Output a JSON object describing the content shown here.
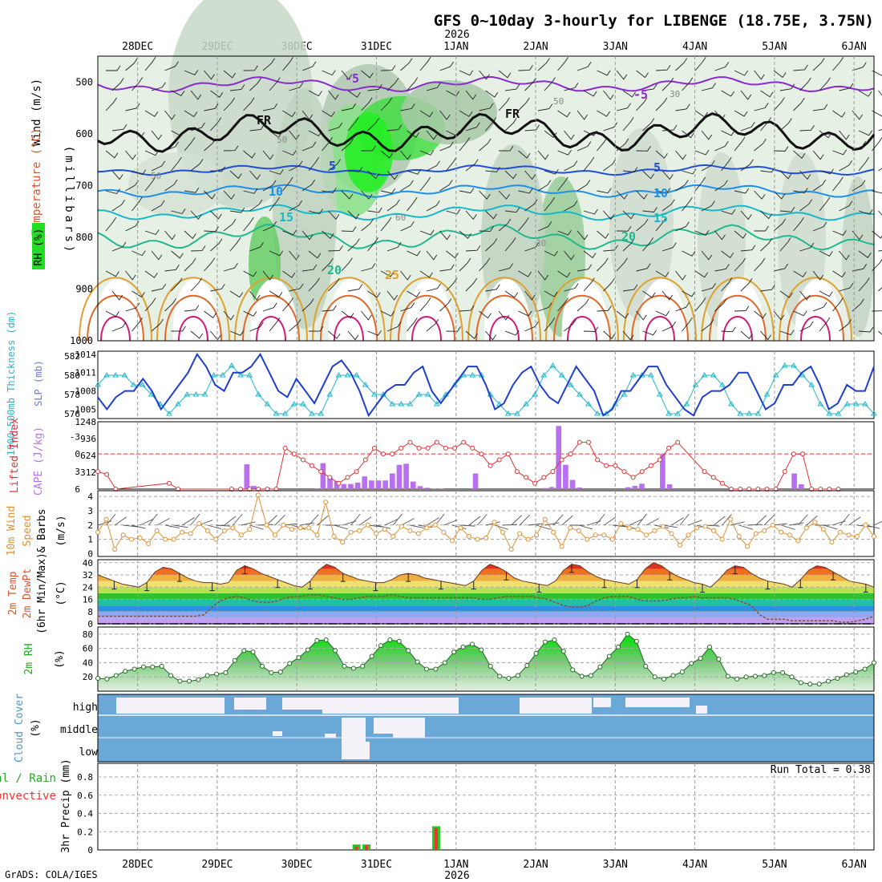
{
  "title": "GFS 0~10day 3-hourly for LIBENGE (18.75E, 3.75N)",
  "year_label": "2026",
  "x_axis": {
    "dates": [
      "28DEC",
      "29DEC",
      "30DEC",
      "31DEC",
      "1JAN",
      "2JAN",
      "3JAN",
      "4JAN",
      "5JAN",
      "6JAN"
    ],
    "date_values": [
      "2025-12-28",
      "2025-12-29",
      "2025-12-30",
      "2025-12-31",
      "2026-01-01",
      "2026-01-02",
      "2026-01-03",
      "2026-01-04",
      "2026-01-05",
      "2026-01-06"
    ],
    "start": "2025-12-27 12:00",
    "end": "2026-01-06 06:00"
  },
  "footer": "GrADS: COLA/IGES",
  "run_total": "Run Total = 0.38",
  "colors": {
    "frame": "#000000",
    "grid": "#aaaaaa",
    "slp": "#1f3fd0",
    "thickness": "#22b8c8",
    "lifted": "#dd3333",
    "cape": "#b870f0",
    "wind": "#e09030",
    "rh": "#22cc22",
    "cloud": "#6aa8d8",
    "precip_total": "#22cc22",
    "precip_conv": "#ee3333"
  },
  "panels": {
    "upper": {
      "label_wind": "Wind (m/s)",
      "label_temp": "Temperature (°C)",
      "label_rh": "RH (%)",
      "label_mb": "(millibars)",
      "ticks": [
        "500",
        "600",
        "700",
        "800",
        "900",
        "1000"
      ],
      "isotherm_labels": [
        "-5",
        "-5",
        "FR",
        "FR",
        "5",
        "5",
        "10",
        "10",
        "15",
        "15",
        "20",
        "20",
        "25",
        "50",
        "50",
        "60",
        "50",
        "30",
        "30"
      ]
    },
    "slp": {
      "label_left": "1000-500mb Thickness (dm)",
      "label_right": "SLP (mb)",
      "ticks_left": [
        "582",
        "580",
        "578",
        "576"
      ],
      "ticks_right": [
        "1014",
        "1011",
        "1008",
        "1005"
      ]
    },
    "cape": {
      "label_left": "Lifted Index",
      "label_right": "CAPE (J/kg)",
      "ticks_left": [
        "-3",
        "0",
        "3",
        "6"
      ],
      "ticks_right": [
        "1248",
        "936",
        "624",
        "312"
      ]
    },
    "wind10m": {
      "label1": "10m Wind",
      "label2": "Speed",
      "label3": "& Barbs",
      "unit": "(m/s)",
      "ticks": [
        "4",
        "3",
        "2",
        "1",
        "0"
      ]
    },
    "temp2m": {
      "label1": "2m Temp",
      "label2": "2m DewPt",
      "label3": "(6hr Min/Max)",
      "unit": "(°C)",
      "ticks": [
        "40",
        "32",
        "24",
        "16",
        "8",
        "0"
      ]
    },
    "rh2m": {
      "label": "2m RH",
      "unit": "(%)",
      "ticks": [
        "80",
        "60",
        "40",
        "20"
      ]
    },
    "cloud": {
      "label": "Cloud Cover",
      "unit": "(%)",
      "levels": [
        "high",
        "middle",
        "low"
      ]
    },
    "precip": {
      "label_total": "Total / Rain",
      "label_conv": "Convective",
      "label_axis": "3hr Precip (mm)",
      "ticks": [
        "0.8",
        "0.6",
        "0.4",
        "0.2",
        "0"
      ]
    }
  },
  "chart_data": [
    {
      "name": "slp",
      "type": "line",
      "unit": "mb",
      "ylim": [
        1003.5,
        1014.5
      ],
      "values": [
        1007,
        1005,
        1007,
        1008,
        1008,
        1010,
        1008,
        1005,
        1007,
        1009,
        1011,
        1014,
        1012,
        1009,
        1008,
        1011,
        1011,
        1012,
        1014,
        1011,
        1008,
        1007,
        1010,
        1008,
        1006,
        1009,
        1012,
        1013,
        1011,
        1008,
        1004,
        1006,
        1008,
        1009,
        1009,
        1011,
        1012,
        1008,
        1006,
        1008,
        1010,
        1012,
        1012,
        1009,
        1005,
        1006,
        1009,
        1011,
        1012,
        1009,
        1007,
        1006,
        1009,
        1012,
        1010,
        1008,
        1004,
        1005,
        1008,
        1008,
        1010,
        1012,
        1012,
        1009,
        1007,
        1005,
        1004,
        1007,
        1008,
        1008,
        1009,
        1011,
        1011,
        1008,
        1005,
        1006,
        1009,
        1009,
        1011,
        1012,
        1009,
        1005,
        1006,
        1009,
        1008,
        1008,
        1012
      ]
    },
    {
      "name": "thickness",
      "type": "line",
      "unit": "dm",
      "ylim": [
        575.5,
        582.5
      ],
      "values": [
        579,
        580,
        580,
        580,
        579,
        579,
        578,
        577,
        576,
        577,
        578,
        578,
        578,
        580,
        580,
        581,
        580,
        580,
        578,
        577,
        576,
        576,
        577,
        577,
        576,
        576,
        578,
        580,
        580,
        580,
        579,
        578,
        578,
        577,
        577,
        577,
        578,
        578,
        577,
        578,
        579,
        580,
        580,
        580,
        578,
        577,
        576,
        576,
        577,
        578,
        580,
        581,
        580,
        579,
        578,
        577,
        576,
        576,
        577,
        578,
        580,
        580,
        580,
        578,
        576,
        576,
        577,
        579,
        580,
        580,
        579,
        577,
        576,
        576,
        576,
        578,
        580,
        581,
        581,
        580,
        579,
        577,
        576,
        576,
        577,
        577,
        577,
        576
      ]
    },
    {
      "name": "lifted_index",
      "type": "line",
      "unit": "",
      "ylim": [
        6,
        -5.5
      ],
      "values": [
        3,
        3.5,
        6,
        null,
        null,
        null,
        null,
        null,
        5,
        6,
        null,
        null,
        null,
        null,
        null,
        6,
        6,
        6,
        6,
        6,
        6,
        -1,
        0,
        1,
        2,
        3,
        4,
        5,
        4,
        3,
        1,
        -1,
        0,
        0,
        -1,
        -2,
        -1,
        -1,
        -2,
        -1,
        -1,
        -2,
        -1,
        0,
        2,
        1,
        0,
        3,
        4,
        5,
        4,
        3,
        1,
        0,
        -2,
        -2,
        1,
        2,
        2,
        3,
        4,
        3,
        2,
        1,
        -1,
        -2,
        null,
        null,
        3,
        4,
        5,
        6,
        6,
        6,
        6,
        6,
        6,
        3,
        0,
        0,
        6,
        6,
        6,
        6,
        null,
        null,
        null,
        null
      ]
    },
    {
      "name": "cape",
      "type": "bar",
      "unit": "J/kg",
      "ylim": [
        0,
        1248
      ],
      "values": [
        0,
        0,
        0,
        0,
        0,
        0,
        0,
        0,
        0,
        0,
        0,
        0,
        0,
        0,
        0,
        0,
        0,
        0,
        0,
        0,
        0,
        460,
        60,
        0,
        25,
        0,
        0,
        0,
        0,
        0,
        0,
        15,
        480,
        210,
        150,
        95,
        95,
        120,
        235,
        160,
        160,
        160,
        290,
        450,
        470,
        140,
        55,
        25,
        5,
        5,
        0,
        0,
        0,
        0,
        290,
        0,
        0,
        0,
        0,
        0,
        0,
        0,
        0,
        0,
        20,
        40,
        1170,
        450,
        170,
        30,
        0,
        0,
        0,
        0,
        0,
        0,
        35,
        60,
        100,
        0,
        0,
        650,
        90,
        0,
        0,
        0,
        0,
        0,
        0,
        0,
        0,
        0,
        0,
        0,
        0,
        0,
        0,
        0,
        0,
        0,
        290,
        90,
        0,
        0,
        0,
        0,
        0,
        0,
        0,
        0,
        0,
        0
      ]
    },
    {
      "name": "wind_speed_10m",
      "type": "line",
      "unit": "m/s",
      "ylim": [
        -0.2,
        4.4
      ],
      "values": [
        1.5,
        2.4,
        0.3,
        1.3,
        1.0,
        1.1,
        0.7,
        1.6,
        1.0,
        1.0,
        1.5,
        1.4,
        2.1,
        1.6,
        1.0,
        1.6,
        1.8,
        1.3,
        1.7,
        4.1,
        2.0,
        1.3,
        2.0,
        1.7,
        1.8,
        1.8,
        1.3,
        3.6,
        1.2,
        0.8,
        1.5,
        1.6,
        2.0,
        1.4,
        1.7,
        1.2,
        1.9,
        1.6,
        1.4,
        1.8,
        2.0,
        1.5,
        0.9,
        1.8,
        1.2,
        1.0,
        1.1,
        2.2,
        1.5,
        0.3,
        1.4,
        1.0,
        1.3,
        2.4,
        1.5,
        0.5,
        1.8,
        1.6,
        1.0,
        1.3,
        1.3,
        1.0,
        2.1,
        1.8,
        1.7,
        1.3,
        1.6,
        1.9,
        1.4,
        0.6,
        1.3,
        1.8,
        1.9,
        1.6,
        1.0,
        2.4,
        1.2,
        0.5,
        1.4,
        1.6,
        2.0,
        1.5,
        1.3,
        0.9,
        1.8,
        2.2,
        1.7,
        0.8,
        1.5,
        1.3,
        1.2,
        2.0,
        1.2
      ]
    },
    {
      "name": "temp_2m",
      "type": "area",
      "unit": "°C",
      "ylim": [
        0,
        42
      ],
      "values": [
        32,
        30,
        28,
        26,
        25,
        24,
        27,
        34,
        37,
        36,
        33,
        30,
        28,
        27,
        27,
        26,
        27,
        35,
        38,
        36,
        33,
        31,
        29,
        27,
        25,
        24,
        28,
        35,
        39,
        37,
        33,
        31,
        29,
        28,
        27,
        27,
        29,
        32,
        33,
        32,
        30,
        29,
        28,
        27,
        26,
        25,
        28,
        35,
        39,
        37,
        34,
        30,
        28,
        27,
        26,
        25,
        28,
        35,
        39,
        38,
        34,
        31,
        29,
        28,
        27,
        26,
        29,
        36,
        40,
        38,
        34,
        31,
        29,
        27,
        26,
        24,
        29,
        35,
        38,
        37,
        33,
        30,
        28,
        27,
        26,
        24,
        29,
        35,
        38,
        37,
        34,
        31,
        28,
        27,
        26,
        24
      ]
    },
    {
      "name": "dewpoint_2m",
      "type": "line",
      "unit": "°C",
      "values": [
        5,
        5,
        5,
        5,
        5,
        5,
        5,
        5,
        5,
        5,
        5,
        5,
        5,
        6,
        11,
        15,
        17,
        18,
        17,
        15,
        14,
        14,
        15,
        17,
        18,
        18,
        19,
        19,
        18,
        17,
        16,
        16,
        17,
        18,
        18,
        18,
        19,
        18,
        17,
        17,
        17,
        17,
        17,
        17,
        17,
        17,
        17,
        16,
        16,
        17,
        18,
        18,
        18,
        18,
        17,
        16,
        14,
        12,
        11,
        11,
        12,
        15,
        17,
        18,
        18,
        18,
        16,
        15,
        15,
        15,
        16,
        17,
        17,
        18,
        17,
        17,
        17,
        17,
        16,
        14,
        12,
        6,
        3,
        3,
        3,
        2,
        2,
        2,
        2,
        2,
        2,
        1,
        1,
        2,
        3,
        5
      ]
    },
    {
      "name": "rh_2m",
      "type": "area",
      "unit": "%",
      "ylim": [
        0,
        90
      ],
      "values": [
        18,
        17,
        22,
        28,
        31,
        34,
        34,
        35,
        22,
        14,
        14,
        16,
        22,
        24,
        26,
        43,
        57,
        55,
        35,
        26,
        27,
        39,
        47,
        58,
        71,
        72,
        57,
        35,
        32,
        35,
        49,
        64,
        72,
        70,
        57,
        41,
        31,
        31,
        40,
        55,
        62,
        66,
        58,
        35,
        21,
        18,
        22,
        36,
        53,
        69,
        72,
        56,
        30,
        21,
        22,
        34,
        49,
        62,
        80,
        70,
        35,
        20,
        17,
        22,
        27,
        39,
        46,
        62,
        45,
        21,
        17,
        20,
        21,
        22,
        26,
        26,
        20,
        12,
        10,
        10,
        14,
        18,
        23,
        27,
        31,
        40
      ]
    },
    {
      "name": "cloud_cover",
      "type": "heatmap",
      "levels": [
        "high",
        "middle",
        "low"
      ]
    },
    {
      "name": "precip_3hr",
      "type": "bar",
      "unit": "mm",
      "ylim": [
        0,
        0.95
      ],
      "total": {
        "2025-12-30 18:00": 0.06,
        "2025-12-30 21:00": 0.06,
        "2025-12-31 18:00": 0.26
      },
      "convective": {
        "2025-12-30 18:00": 0.04,
        "2025-12-30 21:00": 0.05,
        "2025-12-31 18:00": 0.24
      }
    }
  ]
}
